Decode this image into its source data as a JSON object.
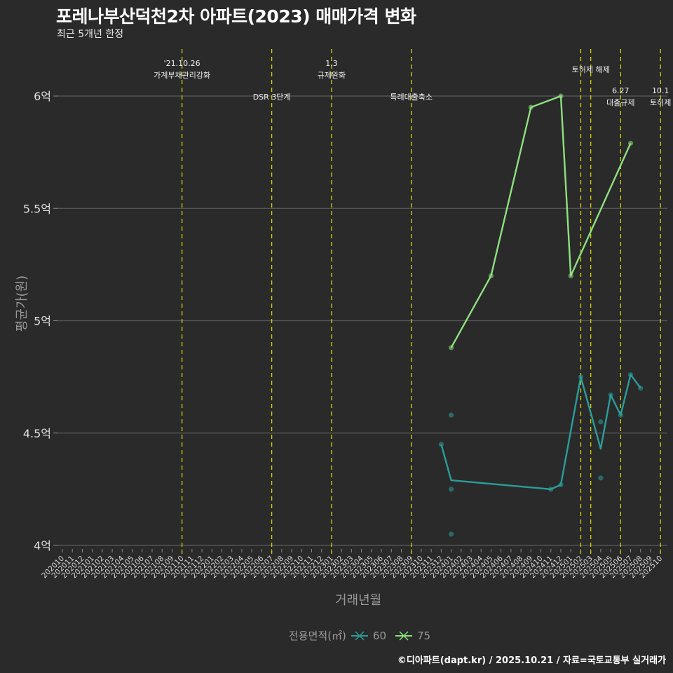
{
  "header": {
    "title": "포레나부산덕천2차 아파트(2023) 매매가격 변화",
    "subtitle": "최근 5개년 한정"
  },
  "axes": {
    "xlabel": "거래년월",
    "ylabel": "평균가(원)"
  },
  "legend": {
    "title": "전용면적(㎡)",
    "items": [
      {
        "label": "60",
        "color": "#2a9d9a"
      },
      {
        "label": "75",
        "color": "#8ee07e"
      }
    ]
  },
  "caption": "©디아파트(dapt.kr) / 2025.10.21 / 자료=국토교통부 실거래가",
  "chart_data": {
    "type": "line",
    "title": "포레나부산덕천2차 아파트(2023) 매매가격 변화",
    "subtitle": "최근 5개년 한정",
    "xlabel": "거래년월",
    "ylabel": "평균가(원)",
    "ylim": [
      3.95,
      6.2
    ],
    "yticks": [
      4,
      4.5,
      5,
      5.5,
      6
    ],
    "ytick_labels": [
      "4억",
      "4.5억",
      "5억",
      "5.5억",
      "6억"
    ],
    "grid": true,
    "legend_position": "bottom",
    "categories": [
      "202010",
      "202011",
      "202012",
      "202101",
      "202102",
      "202103",
      "202104",
      "202105",
      "202106",
      "202107",
      "202108",
      "202109",
      "202110",
      "202111",
      "202112",
      "202201",
      "202202",
      "202203",
      "202204",
      "202205",
      "202206",
      "202207",
      "202208",
      "202209",
      "202210",
      "202211",
      "202212",
      "202301",
      "202302",
      "202303",
      "202304",
      "202305",
      "202306",
      "202307",
      "202308",
      "202309",
      "202310",
      "202311",
      "202312",
      "202401",
      "202402",
      "202403",
      "202404",
      "202405",
      "202406",
      "202407",
      "202408",
      "202409",
      "202410",
      "202411",
      "202412",
      "202501",
      "202502",
      "202503",
      "202504",
      "202505",
      "202506",
      "202507",
      "202508",
      "202509",
      "202510"
    ],
    "series": [
      {
        "name": "60",
        "color": "#2a9d9a",
        "points": [
          {
            "x": "202312",
            "y": 4.45
          },
          {
            "x": "202401",
            "y": 4.29
          },
          {
            "x": "202411",
            "y": 4.25
          },
          {
            "x": "202412",
            "y": 4.27
          },
          {
            "x": "202502",
            "y": 4.75
          },
          {
            "x": "202504",
            "y": 4.43
          },
          {
            "x": "202505",
            "y": 4.67
          },
          {
            "x": "202506",
            "y": 4.58
          },
          {
            "x": "202507",
            "y": 4.76
          },
          {
            "x": "202508",
            "y": 4.7
          }
        ],
        "scatter": [
          {
            "x": "202312",
            "y": 4.45
          },
          {
            "x": "202401",
            "y": 4.58
          },
          {
            "x": "202401",
            "y": 4.25
          },
          {
            "x": "202401",
            "y": 4.05
          },
          {
            "x": "202411",
            "y": 4.25
          },
          {
            "x": "202412",
            "y": 4.27
          },
          {
            "x": "202502",
            "y": 4.75
          },
          {
            "x": "202504",
            "y": 4.55
          },
          {
            "x": "202504",
            "y": 4.3
          },
          {
            "x": "202505",
            "y": 4.67
          },
          {
            "x": "202506",
            "y": 4.58
          },
          {
            "x": "202507",
            "y": 4.76
          },
          {
            "x": "202508",
            "y": 4.7
          }
        ]
      },
      {
        "name": "75",
        "color": "#8ee07e",
        "points": [
          {
            "x": "202401",
            "y": 4.88
          },
          {
            "x": "202405",
            "y": 5.2
          },
          {
            "x": "202409",
            "y": 5.95
          },
          {
            "x": "202412",
            "y": 6.0
          },
          {
            "x": "202501",
            "y": 5.2
          },
          {
            "x": "202507",
            "y": 5.79
          }
        ],
        "scatter": [
          {
            "x": "202401",
            "y": 4.88
          },
          {
            "x": "202405",
            "y": 5.2
          },
          {
            "x": "202409",
            "y": 5.95
          },
          {
            "x": "202412",
            "y": 6.0
          },
          {
            "x": "202501",
            "y": 5.2
          },
          {
            "x": "202507",
            "y": 5.79
          }
        ]
      }
    ],
    "annotations": [
      {
        "x": "202110",
        "lines": [
          "'21.10.26",
          "가계부채관리강화"
        ],
        "row": "top"
      },
      {
        "x": "202207",
        "lines": [
          "DSR 3단계"
        ],
        "row": "bottom"
      },
      {
        "x": "202301",
        "lines": [
          "1.3",
          "규제완화"
        ],
        "row": "top"
      },
      {
        "x": "202309",
        "lines": [
          "특례대출축소"
        ],
        "row": "bottom"
      },
      {
        "x": "202502",
        "lines": [],
        "row": "none"
      },
      {
        "x": "202503",
        "lines": [
          "토허제 해제"
        ],
        "row": "mid"
      },
      {
        "x": "202506",
        "lines": [
          "6.27",
          "대출규제"
        ],
        "row": "low"
      },
      {
        "x": "202510",
        "lines": [
          "10.1",
          "토허제"
        ],
        "row": "low"
      }
    ]
  }
}
